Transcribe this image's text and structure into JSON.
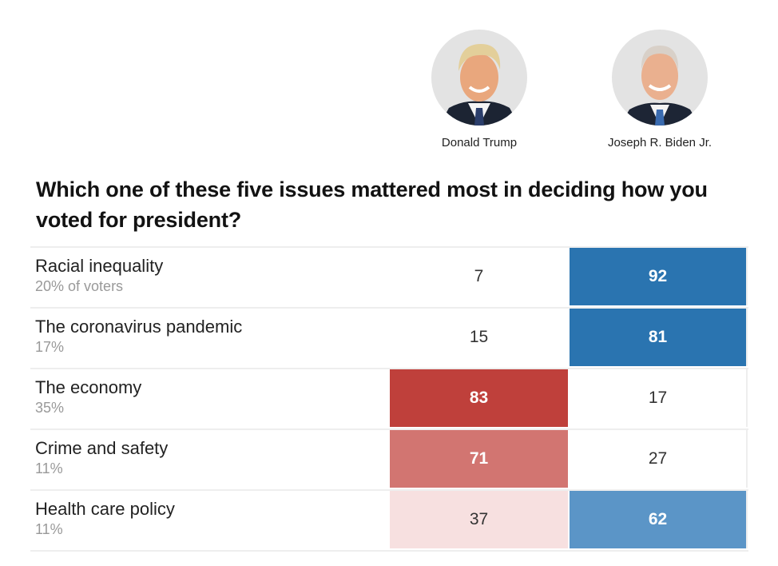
{
  "candidates": [
    {
      "name": "Donald Trump",
      "party_color": "#bf403b"
    },
    {
      "name": "Joseph R. Biden Jr.",
      "party_color": "#2a74b0"
    }
  ],
  "chart_data": {
    "type": "table",
    "title": "Which one of these five issues mattered most in deciding how you voted for president?",
    "columns": [
      "Donald Trump",
      "Joseph R. Biden Jr."
    ],
    "rows": [
      {
        "issue": "Racial inequality",
        "share": "20% of voters",
        "values": [
          7,
          92
        ],
        "fills": [
          "#ffffff",
          "#2a74b0"
        ],
        "text": [
          "light",
          "dark"
        ]
      },
      {
        "issue": "The coronavirus pandemic",
        "share": "17%",
        "values": [
          15,
          81
        ],
        "fills": [
          "#ffffff",
          "#2a74b0"
        ],
        "text": [
          "light",
          "dark"
        ]
      },
      {
        "issue": "The economy",
        "share": "35%",
        "values": [
          83,
          17
        ],
        "fills": [
          "#bf403b",
          "#ffffff"
        ],
        "text": [
          "dark",
          "light"
        ]
      },
      {
        "issue": "Crime and safety",
        "share": "11%",
        "values": [
          71,
          27
        ],
        "fills": [
          "#d27571",
          "#ffffff"
        ],
        "text": [
          "dark",
          "light"
        ]
      },
      {
        "issue": "Health care policy",
        "share": "11%",
        "values": [
          37,
          62
        ],
        "fills": [
          "#f7e0e0",
          "#5b95c7"
        ],
        "text": [
          "light",
          "dark"
        ]
      }
    ]
  }
}
